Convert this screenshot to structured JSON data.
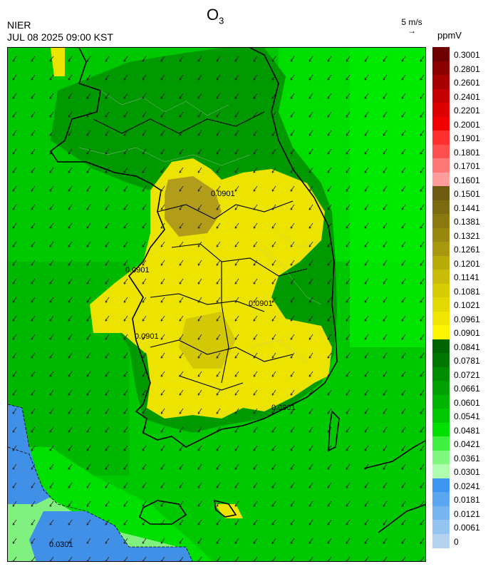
{
  "header": {
    "species_base": "O",
    "species_sub": "3",
    "agency": "NIER",
    "datetime": "JUL 08 2025 09:00 KST",
    "ref_vector_label": "5 m/s",
    "ref_vector_arrow": "→",
    "unit": "ppmV"
  },
  "map": {
    "contour_labels": [
      "0.0901",
      "0.0901",
      "0.0901",
      "0.0301",
      "0.0901",
      "0.0901"
    ],
    "wind_direction": "north-easterly (arrows pointing south-west)",
    "colors": {
      "background_green": "#00c800",
      "yellow_zone": "#e6dc00",
      "olive_zone": "#a09020",
      "blue_zone": "#4090e0",
      "light_green": "#80f080"
    }
  },
  "colorbar": {
    "levels": [
      {
        "label": "0.3001",
        "color": "#6e0000"
      },
      {
        "label": "0.2801",
        "color": "#8a0000"
      },
      {
        "label": "0.2601",
        "color": "#a80000"
      },
      {
        "label": "0.2401",
        "color": "#c40000"
      },
      {
        "label": "0.2201",
        "color": "#dc0000"
      },
      {
        "label": "0.2001",
        "color": "#f00000"
      },
      {
        "label": "0.1901",
        "color": "#ff3030"
      },
      {
        "label": "0.1801",
        "color": "#ff5050"
      },
      {
        "label": "0.1701",
        "color": "#ff7878"
      },
      {
        "label": "0.1601",
        "color": "#ff9c9c"
      },
      {
        "label": "0.1501",
        "color": "#6e5a10"
      },
      {
        "label": "0.1441",
        "color": "#7c6a10"
      },
      {
        "label": "0.1381",
        "color": "#8a7810"
      },
      {
        "label": "0.1321",
        "color": "#988810"
      },
      {
        "label": "0.1261",
        "color": "#a89810"
      },
      {
        "label": "0.1201",
        "color": "#b8aa08"
      },
      {
        "label": "0.1141",
        "color": "#c8bc08"
      },
      {
        "label": "0.1081",
        "color": "#d6cc04"
      },
      {
        "label": "0.1021",
        "color": "#e2da02"
      },
      {
        "label": "0.0961",
        "color": "#eee600"
      },
      {
        "label": "0.0901",
        "color": "#fcf400"
      },
      {
        "label": "0.0841",
        "color": "#006400"
      },
      {
        "label": "0.0781",
        "color": "#007800"
      },
      {
        "label": "0.0721",
        "color": "#008c00"
      },
      {
        "label": "0.0661",
        "color": "#00a000"
      },
      {
        "label": "0.0601",
        "color": "#00b400"
      },
      {
        "label": "0.0541",
        "color": "#00c800"
      },
      {
        "label": "0.0481",
        "color": "#00e000"
      },
      {
        "label": "0.0421",
        "color": "#40f040"
      },
      {
        "label": "0.0361",
        "color": "#80f880"
      },
      {
        "label": "0.0301",
        "color": "#b0ffb0"
      },
      {
        "label": "0.0241",
        "color": "#3c96f0"
      },
      {
        "label": "0.0181",
        "color": "#5aa6f0"
      },
      {
        "label": "0.0121",
        "color": "#78b4f0"
      },
      {
        "label": "0.0061",
        "color": "#96c4f0"
      },
      {
        "label": "0",
        "color": "#b4d2f0"
      }
    ]
  }
}
